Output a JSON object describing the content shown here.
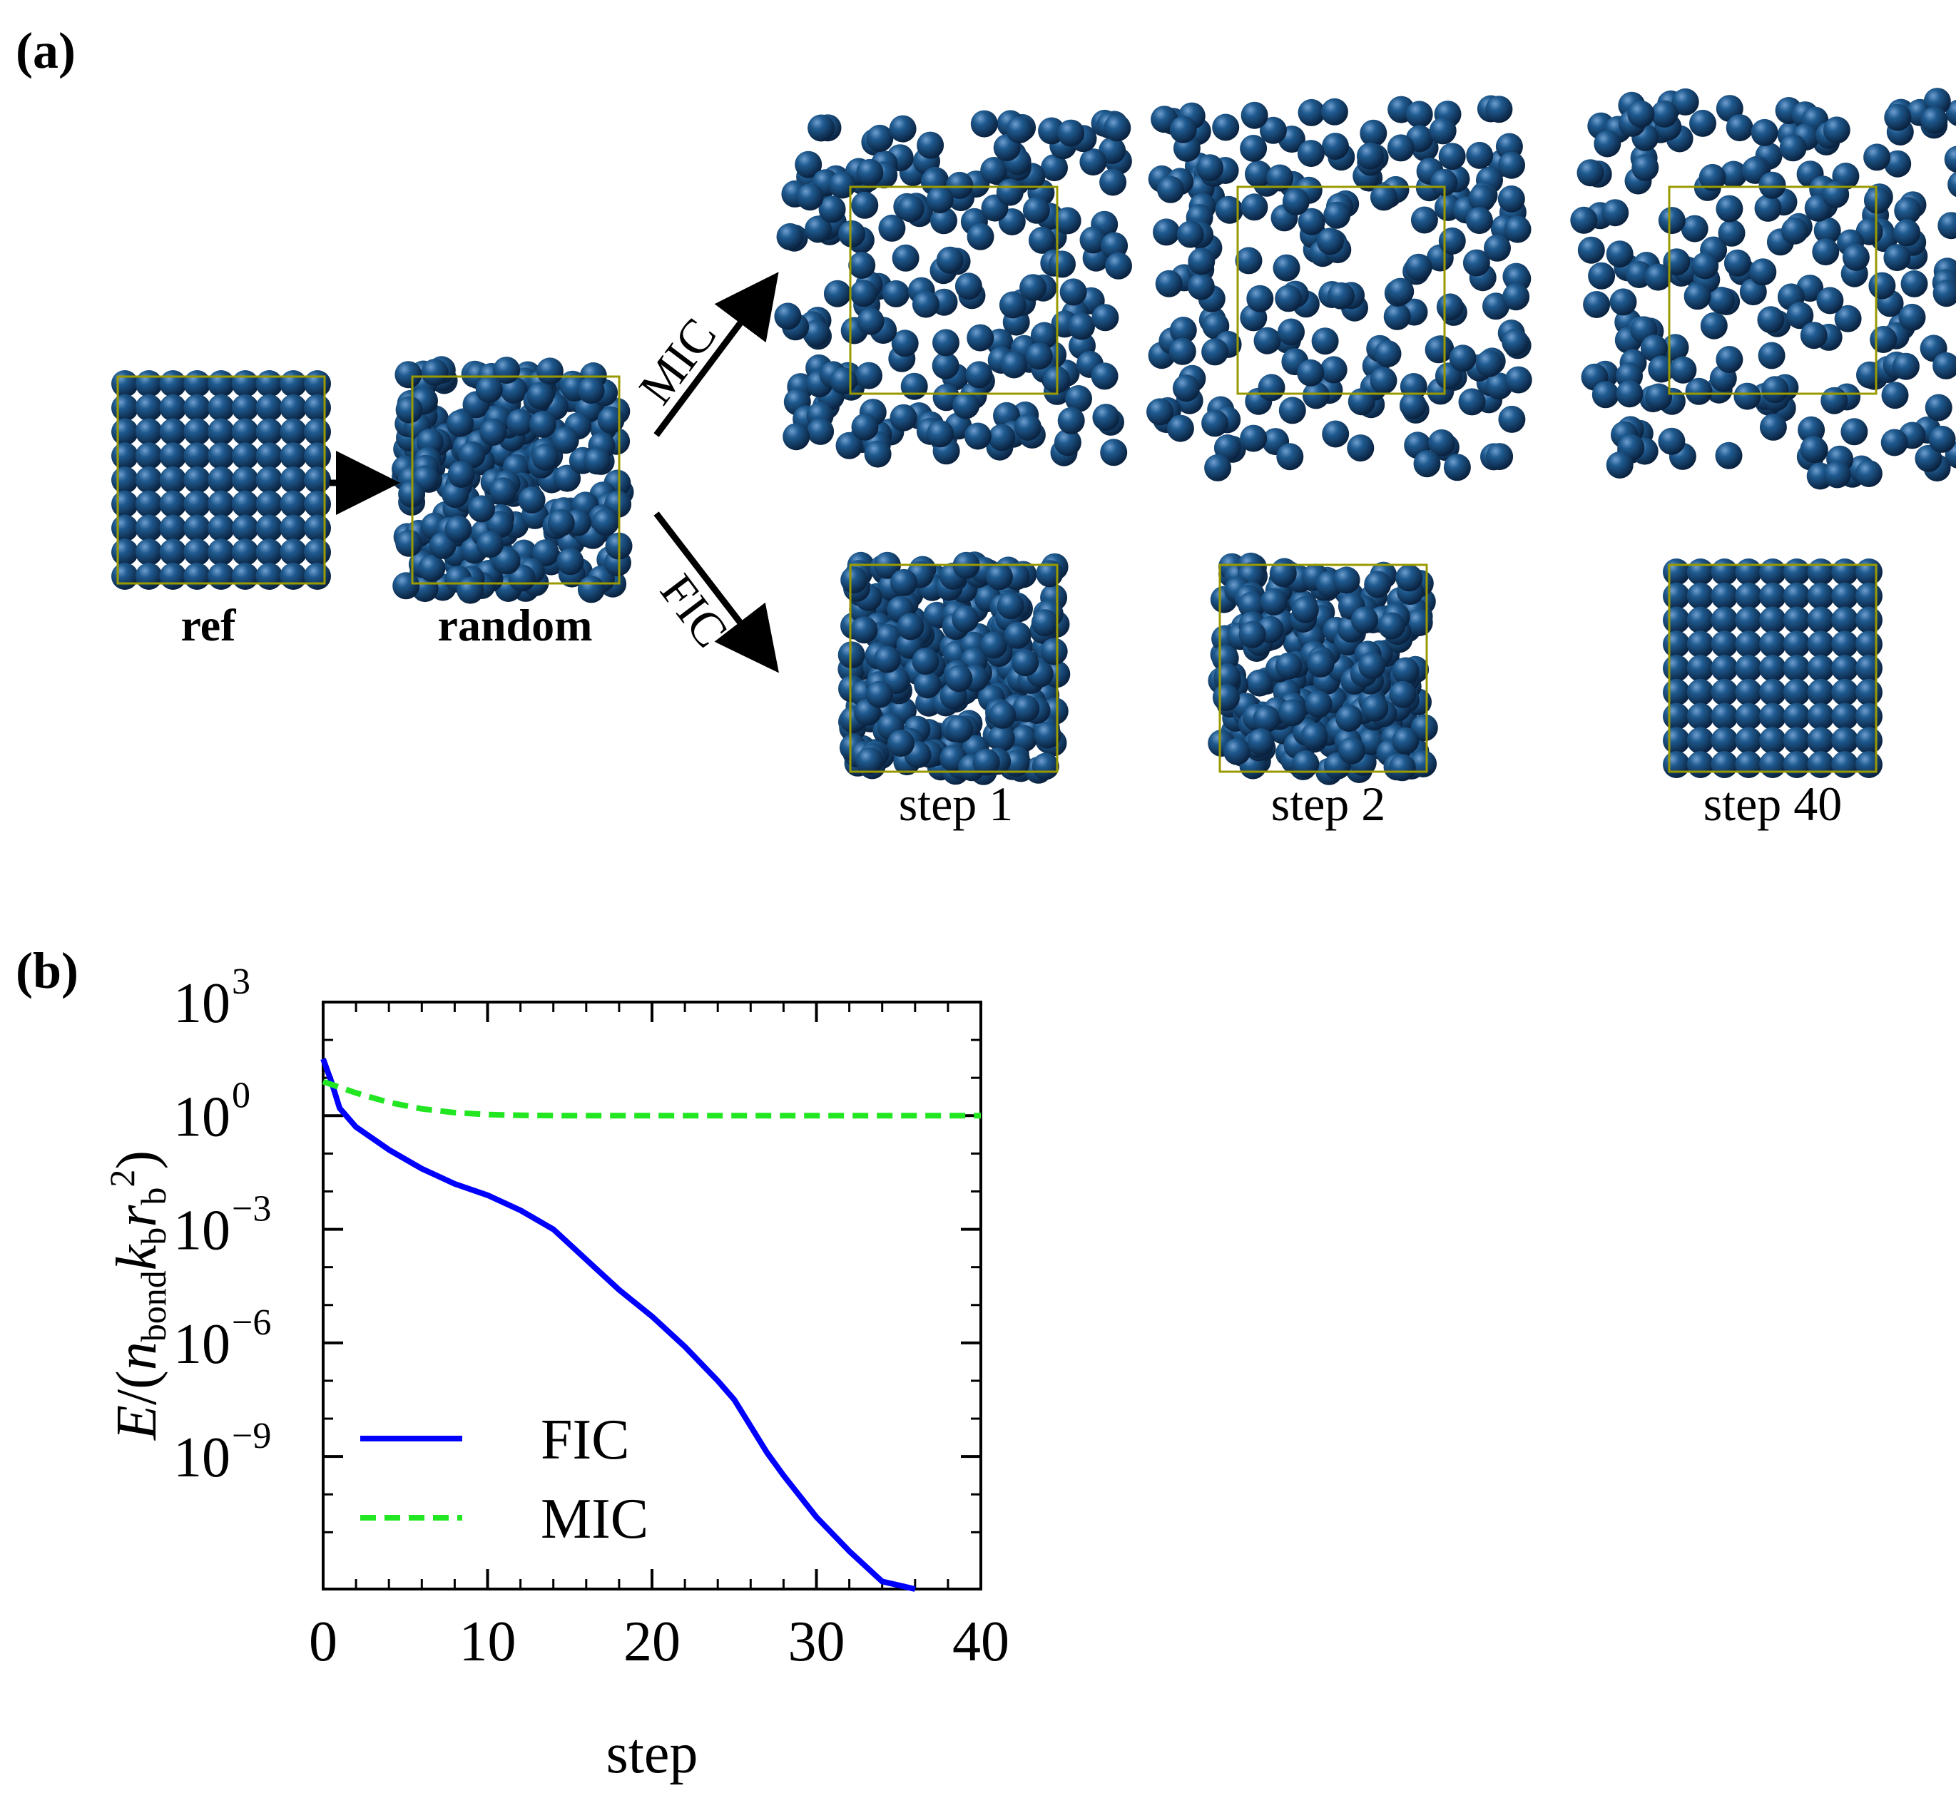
{
  "panel_a": {
    "label": "(a)",
    "snapshots": {
      "ref": "ref",
      "random": "random",
      "step1": "step 1",
      "step2": "step 2",
      "step40": "step 40"
    },
    "arrows": {
      "mic": "MIC",
      "fic": "FIC"
    },
    "colors": {
      "sphere": "#14406e",
      "sphere_highlight": "#6f9ecf",
      "box": "#9a9a00"
    }
  },
  "panel_b": {
    "label": "(b)"
  },
  "chart_data": {
    "type": "line",
    "title": "",
    "xlabel": "step",
    "ylabel_parts": {
      "E": "E",
      "slash": "/(",
      "n": "n",
      "bond": "bond",
      "k": "k",
      "b1": "b",
      "r": "r",
      "b2": "b",
      "sq": "2",
      "close": ")"
    },
    "xlim": [
      0,
      40
    ],
    "ylim_log10": [
      -12.5,
      3
    ],
    "yscale": "log",
    "x_ticks": [
      0,
      10,
      20,
      30,
      40
    ],
    "x_tick_labels": [
      "0",
      "10",
      "20",
      "30",
      "40"
    ],
    "y_ticks_log10": [
      3,
      0,
      -3,
      -6,
      -9
    ],
    "y_tick_base": "10",
    "y_tick_exps": [
      "3",
      "0",
      "−3",
      "−6",
      "−9"
    ],
    "legend_position": "lower-left",
    "series": [
      {
        "name": "FIC",
        "color": "#0000ff",
        "dash": "solid",
        "x": [
          0,
          0.5,
          1,
          2,
          3,
          4,
          5,
          6,
          7,
          8,
          10,
          12,
          14,
          16,
          18,
          20,
          22,
          24,
          25,
          26,
          27,
          28,
          30,
          32,
          34,
          36
        ],
        "log10_y": [
          1.5,
          0.9,
          0.2,
          -0.3,
          -0.6,
          -0.9,
          -1.15,
          -1.4,
          -1.6,
          -1.8,
          -2.1,
          -2.5,
          -3.0,
          -3.8,
          -4.6,
          -5.3,
          -6.1,
          -7.0,
          -7.5,
          -8.2,
          -8.9,
          -9.5,
          -10.6,
          -11.5,
          -12.3,
          -12.5
        ]
      },
      {
        "name": "MIC",
        "color": "#22e622",
        "dash": "dashed",
        "x": [
          0,
          2,
          4,
          6,
          8,
          10,
          12,
          15,
          20,
          30,
          40
        ],
        "log10_y": [
          0.9,
          0.6,
          0.35,
          0.18,
          0.08,
          0.03,
          0.01,
          0.0,
          0.0,
          0.0,
          0.0
        ]
      }
    ]
  }
}
